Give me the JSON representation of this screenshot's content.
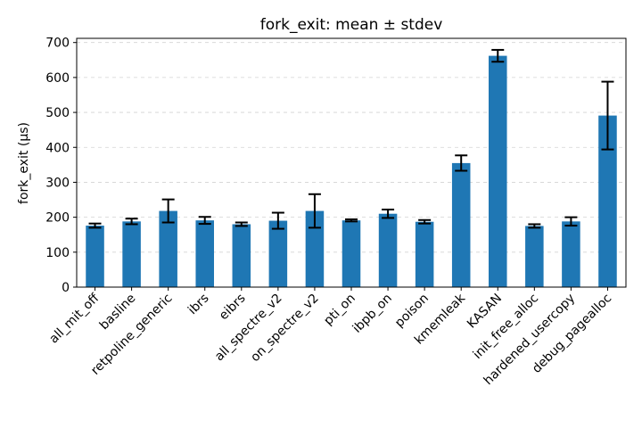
{
  "chart_data": {
    "type": "bar",
    "title": "fork_exit: mean ± stdev",
    "xlabel": "",
    "ylabel": "fork_exit (μs)",
    "ylim": [
      0,
      712
    ],
    "yticks": [
      0,
      100,
      200,
      300,
      400,
      500,
      600,
      700
    ],
    "grid": "y-dashed",
    "legend": "none",
    "bar_color": "#1f77b4",
    "categories": [
      "all_mit_off",
      "basline",
      "retpoline_generic",
      "ibrs",
      "eibrs",
      "all_spectre_v2",
      "on_spectre_v2",
      "pti_on",
      "ibpb_on",
      "poison",
      "kmemleak",
      "KASAN",
      "init_free_alloc",
      "hardened_usercopy",
      "debug_pagealloc"
    ],
    "values": [
      176,
      188,
      218,
      191,
      180,
      190,
      218,
      191,
      210,
      187,
      355,
      662,
      175,
      188,
      491
    ],
    "errors": [
      6,
      8,
      33,
      10,
      5,
      23,
      48,
      3,
      12,
      5,
      22,
      17,
      5,
      12,
      97
    ]
  }
}
